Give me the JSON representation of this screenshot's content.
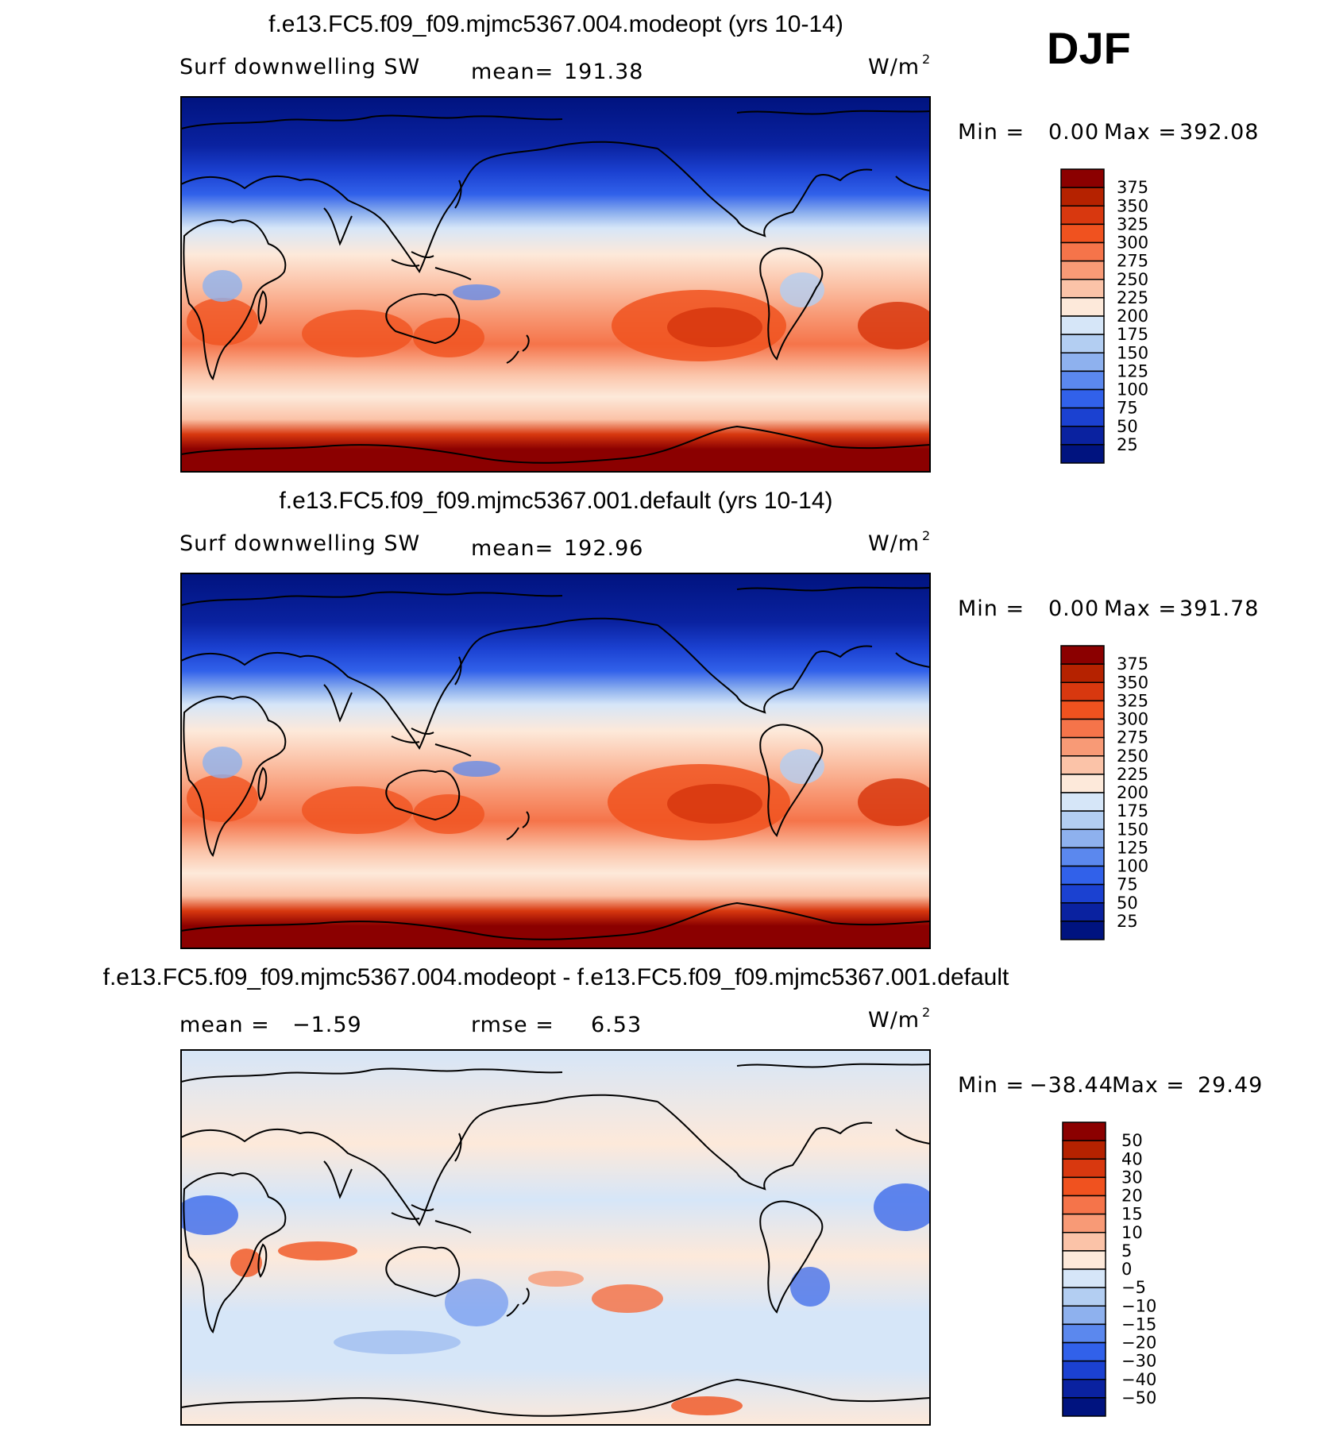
{
  "figure": {
    "season_label": "DJF"
  },
  "chart_data": [
    {
      "type": "heatmap",
      "title": "f.e13.FC5.f09_f09.mjmc5367.004.modeopt (yrs 10-14)",
      "variable": "Surf downwelling SW",
      "stat_label": "mean=",
      "stat_value": "191.38",
      "units": "W/m",
      "units_sup": "2",
      "min_label": "Min =",
      "min_value": "0.00",
      "max_label": "Max =",
      "max_value": "392.08",
      "colorbar": {
        "levels": [
          "375",
          "350",
          "325",
          "300",
          "275",
          "250",
          "225",
          "200",
          "175",
          "150",
          "125",
          "100",
          "75",
          "50",
          "25"
        ],
        "colors": [
          "#8b0000",
          "#b52200",
          "#d8380f",
          "#f0521f",
          "#f5744a",
          "#f89a76",
          "#fbc3a8",
          "#fde9da",
          "#d6e6f8",
          "#b3cef2",
          "#8eb1ee",
          "#5b88ee",
          "#3161ea",
          "#1b41d1",
          "#0a22a0",
          "#00137f"
        ]
      }
    },
    {
      "type": "heatmap",
      "title": "f.e13.FC5.f09_f09.mjmc5367.001.default (yrs 10-14)",
      "variable": "Surf downwelling SW",
      "stat_label": "mean=",
      "stat_value": "192.96",
      "units": "W/m",
      "units_sup": "2",
      "min_label": "Min =",
      "min_value": "0.00",
      "max_label": "Max =",
      "max_value": "391.78",
      "colorbar": {
        "levels": [
          "375",
          "350",
          "325",
          "300",
          "275",
          "250",
          "225",
          "200",
          "175",
          "150",
          "125",
          "100",
          "75",
          "50",
          "25"
        ],
        "colors": [
          "#8b0000",
          "#b52200",
          "#d8380f",
          "#f0521f",
          "#f5744a",
          "#f89a76",
          "#fbc3a8",
          "#fde9da",
          "#d6e6f8",
          "#b3cef2",
          "#8eb1ee",
          "#5b88ee",
          "#3161ea",
          "#1b41d1",
          "#0a22a0",
          "#00137f"
        ]
      }
    },
    {
      "type": "heatmap",
      "title": "f.e13.FC5.f09_f09.mjmc5367.004.modeopt - f.e13.FC5.f09_f09.mjmc5367.001.default",
      "stat_label": "mean =",
      "stat_value": "−1.59",
      "stat2_label": "rmse =",
      "stat2_value": "6.53",
      "units": "W/m",
      "units_sup": "2",
      "min_label": "Min =",
      "min_value": "−38.44",
      "max_label": "Max =",
      "max_value": "29.49",
      "colorbar": {
        "levels": [
          "50",
          "40",
          "30",
          "20",
          "15",
          "10",
          "5",
          "0",
          "−5",
          "−10",
          "−15",
          "−20",
          "−30",
          "−40",
          "−50"
        ],
        "colors": [
          "#8b0000",
          "#b52200",
          "#d8380f",
          "#f0521f",
          "#f5744a",
          "#f89a76",
          "#fbc3a8",
          "#fde9da",
          "#d6e6f8",
          "#b3cef2",
          "#8eb1ee",
          "#5b88ee",
          "#3161ea",
          "#1b41d1",
          "#0a22a0",
          "#00137f"
        ]
      }
    }
  ]
}
